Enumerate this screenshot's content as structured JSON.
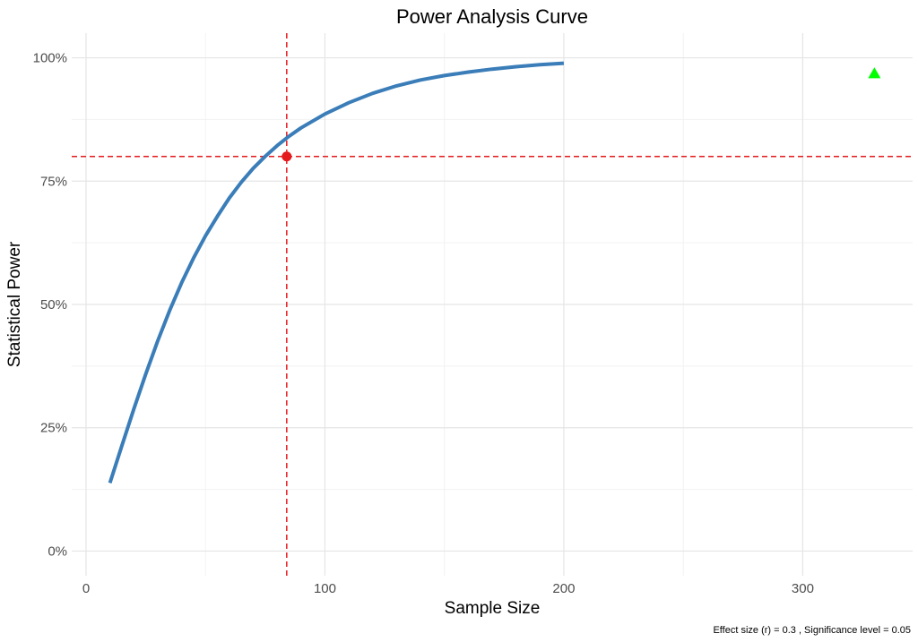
{
  "chart_data": {
    "type": "line",
    "title": "Power Analysis Curve",
    "xlabel": "Sample Size",
    "ylabel": "Statistical Power",
    "caption": "Effect size (r) = 0.3 , Significance level = 0.05",
    "xlim": [
      -6,
      346
    ],
    "ylim": [
      -0.05,
      1.05
    ],
    "x_ticks": [
      0,
      100,
      200,
      300
    ],
    "x_tick_labels": [
      "0",
      "100",
      "200",
      "300"
    ],
    "y_ticks": [
      0,
      0.25,
      0.5,
      0.75,
      1.0
    ],
    "y_tick_labels": [
      "0%",
      "25%",
      "50%",
      "75%",
      "100%"
    ],
    "grid": true,
    "series": [
      {
        "color": "#3a7db8",
        "x": [
          10,
          15,
          20,
          25,
          30,
          35,
          40,
          45,
          50,
          55,
          60,
          65,
          70,
          75,
          80,
          85,
          90,
          100,
          110,
          120,
          130,
          140,
          150,
          160,
          170,
          180,
          190,
          200
        ],
        "y": [
          0.138,
          0.214,
          0.288,
          0.359,
          0.426,
          0.488,
          0.544,
          0.594,
          0.639,
          0.679,
          0.716,
          0.748,
          0.776,
          0.8,
          0.822,
          0.841,
          0.858,
          0.886,
          0.909,
          0.928,
          0.943,
          0.955,
          0.964,
          0.971,
          0.977,
          0.982,
          0.986,
          0.989
        ]
      }
    ],
    "reference_lines": [
      {
        "orientation": "vertical",
        "value": 84,
        "color": "#e41a1c"
      },
      {
        "orientation": "horizontal",
        "value": 0.8,
        "color": "#e41a1c"
      }
    ],
    "points": [
      {
        "x": 84,
        "y": 0.8,
        "shape": "circle",
        "color": "#e41a1c"
      },
      {
        "x": 330,
        "y": 0.968,
        "shape": "triangle",
        "color": "#00ff00"
      }
    ]
  }
}
